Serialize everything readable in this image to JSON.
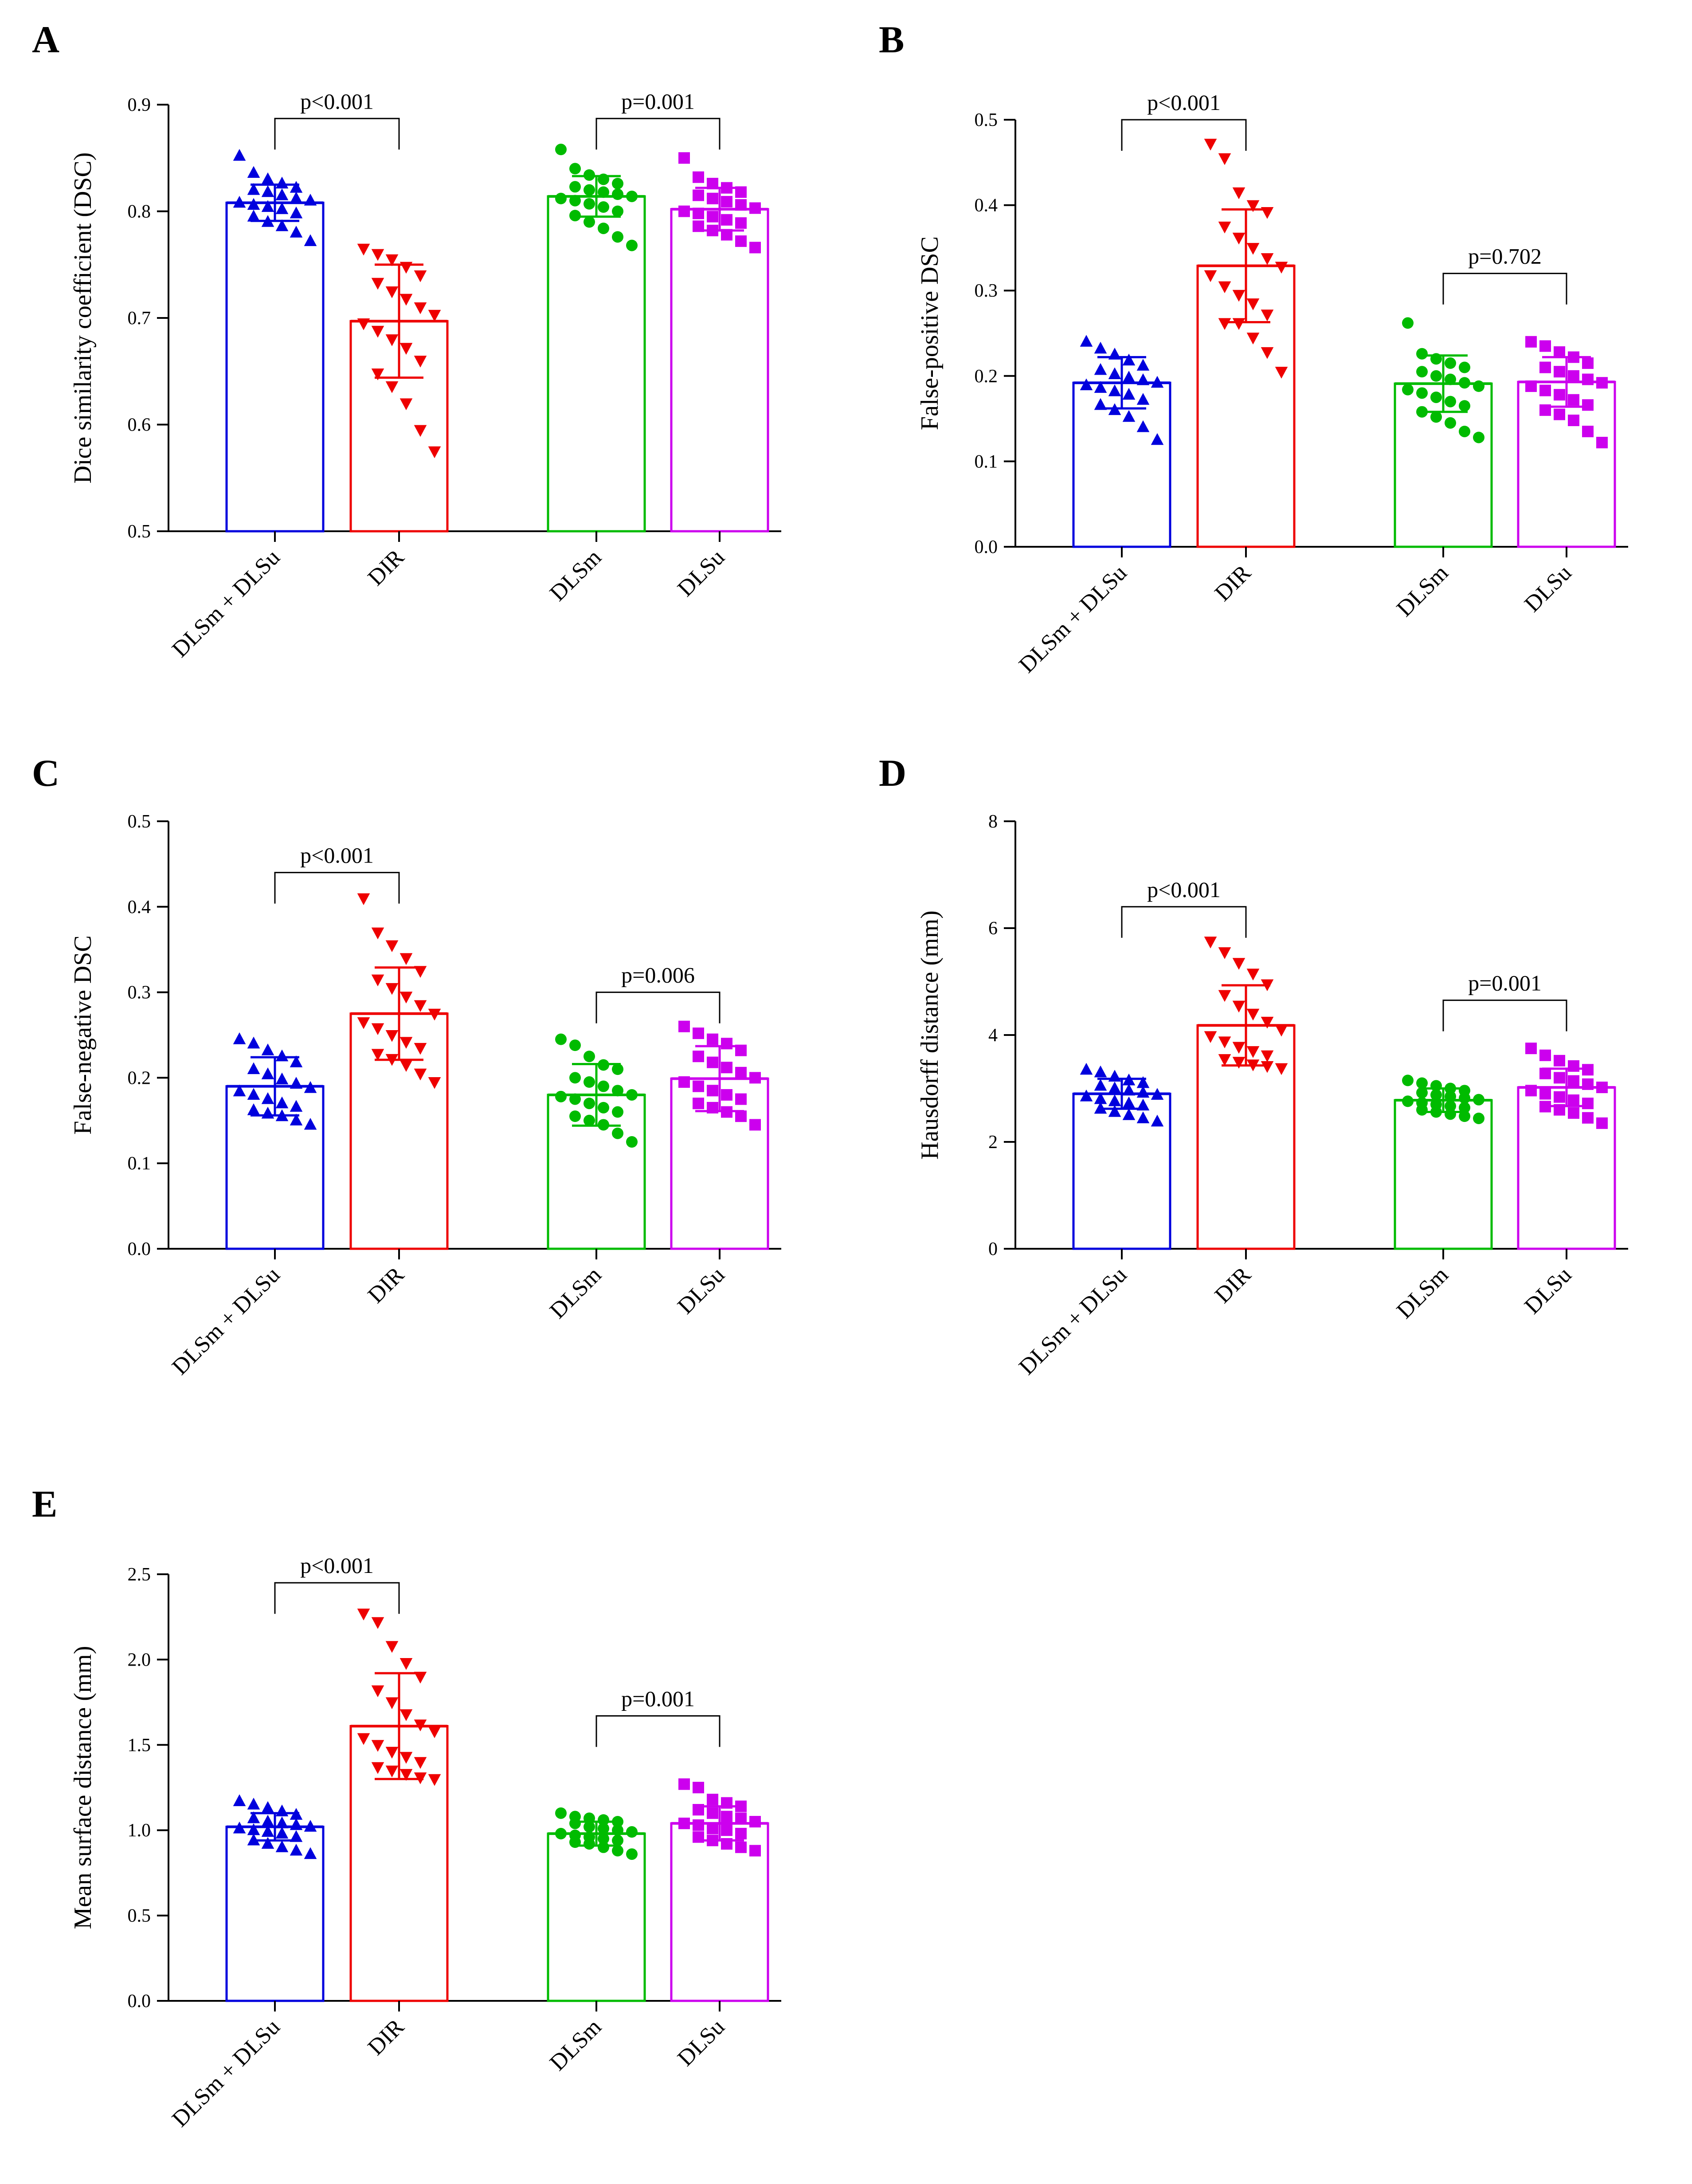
{
  "chart_data": [
    {
      "panel": "A",
      "type": "bar",
      "ylabel": "Dice similarity coefficient (DSC)",
      "ylim": [
        0.5,
        0.9
      ],
      "ticks": [
        "0.5",
        "0.6",
        "0.7",
        "0.8",
        "0.9"
      ],
      "tick_values": [
        0.5,
        0.6,
        0.7,
        0.8,
        0.9
      ],
      "categories": [
        "DLSm + DLSu",
        "DIR",
        "DLSm",
        "DLSu"
      ],
      "series": [
        {
          "name": "DLSm + DLSu",
          "color": "#0000dd",
          "marker": "triangle-up",
          "mean": 0.808,
          "sd": 0.017,
          "points": [
            0.852,
            0.836,
            0.83,
            0.826,
            0.822,
            0.82,
            0.818,
            0.815,
            0.812,
            0.81,
            0.808,
            0.806,
            0.804,
            0.802,
            0.798,
            0.795,
            0.79,
            0.786,
            0.78,
            0.772
          ]
        },
        {
          "name": "DIR",
          "color": "#ee0000",
          "marker": "triangle-down",
          "mean": 0.697,
          "sd": 0.053,
          "points": [
            0.765,
            0.76,
            0.755,
            0.748,
            0.74,
            0.733,
            0.725,
            0.718,
            0.71,
            0.703,
            0.695,
            0.688,
            0.68,
            0.672,
            0.66,
            0.648,
            0.636,
            0.62,
            0.595,
            0.575
          ]
        },
        {
          "name": "DLSm",
          "color": "#00bb00",
          "marker": "circle",
          "mean": 0.814,
          "sd": 0.019,
          "points": [
            0.858,
            0.84,
            0.834,
            0.83,
            0.826,
            0.823,
            0.82,
            0.818,
            0.816,
            0.814,
            0.812,
            0.81,
            0.807,
            0.804,
            0.8,
            0.796,
            0.79,
            0.784,
            0.776,
            0.768
          ]
        },
        {
          "name": "DLSu",
          "color": "#cc00ee",
          "marker": "square",
          "mean": 0.802,
          "sd": 0.02,
          "points": [
            0.85,
            0.832,
            0.826,
            0.822,
            0.818,
            0.815,
            0.812,
            0.809,
            0.806,
            0.803,
            0.8,
            0.798,
            0.795,
            0.792,
            0.789,
            0.786,
            0.782,
            0.778,
            0.772,
            0.766
          ]
        }
      ],
      "comparisons": [
        {
          "groups": [
            0,
            1
          ],
          "label": "p<0.001",
          "y": 0.887
        },
        {
          "groups": [
            2,
            3
          ],
          "label": "p=0.001",
          "y": 0.887
        }
      ]
    },
    {
      "panel": "B",
      "type": "bar",
      "ylabel": "False-positive DSC",
      "ylim": [
        0.0,
        0.5
      ],
      "ticks": [
        "0.0",
        "0.1",
        "0.2",
        "0.3",
        "0.4",
        "0.5"
      ],
      "tick_values": [
        0.0,
        0.1,
        0.2,
        0.3,
        0.4,
        0.5
      ],
      "categories": [
        "DLSm + DLSu",
        "DIR",
        "DLSm",
        "DLSu"
      ],
      "series": [
        {
          "name": "DLSm + DLSu",
          "color": "#0000dd",
          "marker": "triangle-up",
          "mean": 0.192,
          "sd": 0.03,
          "points": [
            0.24,
            0.232,
            0.225,
            0.218,
            0.212,
            0.207,
            0.202,
            0.198,
            0.195,
            0.192,
            0.189,
            0.186,
            0.182,
            0.178,
            0.172,
            0.166,
            0.16,
            0.152,
            0.14,
            0.125
          ]
        },
        {
          "name": "DIR",
          "color": "#ee0000",
          "marker": "triangle-down",
          "mean": 0.329,
          "sd": 0.066,
          "points": [
            0.472,
            0.455,
            0.415,
            0.4,
            0.392,
            0.375,
            0.362,
            0.35,
            0.338,
            0.328,
            0.318,
            0.305,
            0.295,
            0.285,
            0.272,
            0.262,
            0.262,
            0.245,
            0.228,
            0.205
          ]
        },
        {
          "name": "DLSm",
          "color": "#00bb00",
          "marker": "circle",
          "mean": 0.191,
          "sd": 0.033,
          "points": [
            0.262,
            0.226,
            0.22,
            0.215,
            0.21,
            0.205,
            0.2,
            0.196,
            0.192,
            0.188,
            0.184,
            0.18,
            0.175,
            0.17,
            0.165,
            0.158,
            0.152,
            0.145,
            0.135,
            0.128
          ]
        },
        {
          "name": "DLSu",
          "color": "#cc00ee",
          "marker": "square",
          "mean": 0.193,
          "sd": 0.029,
          "points": [
            0.24,
            0.235,
            0.228,
            0.222,
            0.215,
            0.21,
            0.205,
            0.2,
            0.196,
            0.192,
            0.188,
            0.183,
            0.178,
            0.172,
            0.166,
            0.16,
            0.155,
            0.148,
            0.135,
            0.122
          ]
        }
      ],
      "comparisons": [
        {
          "groups": [
            0,
            1
          ],
          "label": "p<0.001",
          "y": 0.5
        },
        {
          "groups": [
            2,
            3
          ],
          "label": "p=0.702",
          "y": 0.32
        }
      ]
    },
    {
      "panel": "C",
      "type": "bar",
      "ylabel": "False-negative DSC",
      "ylim": [
        0.0,
        0.5
      ],
      "ticks": [
        "0.0",
        "0.1",
        "0.2",
        "0.3",
        "0.4",
        "0.5"
      ],
      "tick_values": [
        0.0,
        0.1,
        0.2,
        0.3,
        0.4,
        0.5
      ],
      "categories": [
        "DLSm + DLSu",
        "DIR",
        "DLSm",
        "DLSu"
      ],
      "series": [
        {
          "name": "DLSm + DLSu",
          "color": "#0000dd",
          "marker": "triangle-up",
          "mean": 0.19,
          "sd": 0.034,
          "points": [
            0.245,
            0.24,
            0.232,
            0.225,
            0.218,
            0.21,
            0.204,
            0.198,
            0.193,
            0.188,
            0.184,
            0.18,
            0.175,
            0.17,
            0.166,
            0.162,
            0.158,
            0.155,
            0.15,
            0.145
          ]
        },
        {
          "name": "DIR",
          "color": "#ee0000",
          "marker": "triangle-down",
          "mean": 0.275,
          "sd": 0.054,
          "points": [
            0.41,
            0.37,
            0.355,
            0.34,
            0.325,
            0.315,
            0.305,
            0.295,
            0.285,
            0.275,
            0.265,
            0.258,
            0.25,
            0.242,
            0.235,
            0.228,
            0.222,
            0.215,
            0.205,
            0.195
          ]
        },
        {
          "name": "DLSm",
          "color": "#00bb00",
          "marker": "circle",
          "mean": 0.18,
          "sd": 0.036,
          "points": [
            0.245,
            0.238,
            0.225,
            0.215,
            0.21,
            0.2,
            0.195,
            0.19,
            0.185,
            0.18,
            0.178,
            0.175,
            0.17,
            0.165,
            0.16,
            0.155,
            0.15,
            0.145,
            0.135,
            0.125
          ]
        },
        {
          "name": "DLSu",
          "color": "#cc00ee",
          "marker": "square",
          "mean": 0.199,
          "sd": 0.038,
          "points": [
            0.26,
            0.252,
            0.245,
            0.24,
            0.232,
            0.225,
            0.218,
            0.212,
            0.206,
            0.2,
            0.195,
            0.19,
            0.185,
            0.18,
            0.175,
            0.17,
            0.165,
            0.16,
            0.155,
            0.145
          ]
        }
      ],
      "comparisons": [
        {
          "groups": [
            0,
            1
          ],
          "label": "p<0.001",
          "y": 0.44
        },
        {
          "groups": [
            2,
            3
          ],
          "label": "p=0.006",
          "y": 0.3
        }
      ]
    },
    {
      "panel": "D",
      "type": "bar",
      "ylabel": "Hausdorff distance (mm)",
      "ylim": [
        0,
        8
      ],
      "ticks": [
        "0",
        "2",
        "4",
        "6",
        "8"
      ],
      "tick_values": [
        0,
        2,
        4,
        6,
        8
      ],
      "categories": [
        "DLSm + DLSu",
        "DIR",
        "DLSm",
        "DLSu"
      ],
      "series": [
        {
          "name": "DLSm + DLSu",
          "color": "#0000dd",
          "marker": "triangle-up",
          "mean": 2.9,
          "sd": 0.28,
          "points": [
            3.35,
            3.3,
            3.22,
            3.15,
            3.1,
            3.05,
            3.0,
            2.96,
            2.92,
            2.88,
            2.85,
            2.8,
            2.76,
            2.72,
            2.68,
            2.62,
            2.56,
            2.5,
            2.44,
            2.38
          ]
        },
        {
          "name": "DIR",
          "color": "#ee0000",
          "marker": "triangle-down",
          "mean": 4.18,
          "sd": 0.75,
          "points": [
            5.75,
            5.55,
            5.35,
            5.15,
            4.95,
            4.75,
            4.55,
            4.4,
            4.25,
            4.1,
            3.98,
            3.88,
            3.78,
            3.7,
            3.62,
            3.55,
            3.5,
            3.45,
            3.42,
            3.38
          ]
        },
        {
          "name": "DLSm",
          "color": "#00bb00",
          "marker": "circle",
          "mean": 2.78,
          "sd": 0.22,
          "points": [
            3.15,
            3.1,
            3.05,
            3.0,
            2.96,
            2.92,
            2.88,
            2.85,
            2.82,
            2.79,
            2.76,
            2.73,
            2.7,
            2.67,
            2.64,
            2.6,
            2.56,
            2.52,
            2.48,
            2.44
          ]
        },
        {
          "name": "DLSu",
          "color": "#cc00ee",
          "marker": "square",
          "mean": 3.02,
          "sd": 0.35,
          "points": [
            3.75,
            3.62,
            3.52,
            3.42,
            3.35,
            3.28,
            3.2,
            3.14,
            3.08,
            3.02,
            2.96,
            2.9,
            2.84,
            2.78,
            2.72,
            2.66,
            2.6,
            2.54,
            2.45,
            2.35
          ]
        }
      ],
      "comparisons": [
        {
          "groups": [
            0,
            1
          ],
          "label": "p<0.001",
          "y": 6.4
        },
        {
          "groups": [
            2,
            3
          ],
          "label": "p=0.001",
          "y": 4.65
        }
      ]
    },
    {
      "panel": "E",
      "type": "bar",
      "ylabel": "Mean surface distance (mm)",
      "ylim": [
        0.0,
        2.5
      ],
      "ticks": [
        "0.0",
        "0.5",
        "1.0",
        "1.5",
        "2.0",
        "2.5"
      ],
      "tick_values": [
        0.0,
        0.5,
        1.0,
        1.5,
        2.0,
        2.5
      ],
      "categories": [
        "DLSm + DLSu",
        "DIR",
        "DLSm",
        "DLSu"
      ],
      "series": [
        {
          "name": "DLSm + DLSu",
          "color": "#0000dd",
          "marker": "triangle-up",
          "mean": 1.02,
          "sd": 0.08,
          "points": [
            1.17,
            1.15,
            1.13,
            1.11,
            1.09,
            1.07,
            1.05,
            1.04,
            1.03,
            1.02,
            1.01,
            1.0,
            0.99,
            0.98,
            0.96,
            0.94,
            0.92,
            0.9,
            0.88,
            0.86
          ]
        },
        {
          "name": "DIR",
          "color": "#ee0000",
          "marker": "triangle-down",
          "mean": 1.61,
          "sd": 0.31,
          "points": [
            2.27,
            2.22,
            2.08,
            1.98,
            1.9,
            1.82,
            1.75,
            1.68,
            1.62,
            1.58,
            1.54,
            1.5,
            1.46,
            1.43,
            1.4,
            1.37,
            1.35,
            1.33,
            1.31,
            1.3
          ]
        },
        {
          "name": "DLSm",
          "color": "#00bb00",
          "marker": "circle",
          "mean": 0.98,
          "sd": 0.07,
          "points": [
            1.1,
            1.08,
            1.07,
            1.06,
            1.05,
            1.04,
            1.02,
            1.01,
            1.0,
            0.99,
            0.98,
            0.97,
            0.96,
            0.95,
            0.94,
            0.93,
            0.92,
            0.9,
            0.88,
            0.86
          ]
        },
        {
          "name": "DLSu",
          "color": "#cc00ee",
          "marker": "square",
          "mean": 1.04,
          "sd": 0.1,
          "points": [
            1.27,
            1.25,
            1.18,
            1.16,
            1.14,
            1.12,
            1.1,
            1.08,
            1.07,
            1.05,
            1.04,
            1.03,
            1.01,
            1.0,
            0.98,
            0.96,
            0.94,
            0.92,
            0.9,
            0.88
          ]
        }
      ],
      "comparisons": [
        {
          "groups": [
            0,
            1
          ],
          "label": "p<0.001",
          "y": 2.45
        },
        {
          "groups": [
            2,
            3
          ],
          "label": "p=0.001",
          "y": 1.67
        }
      ]
    }
  ]
}
